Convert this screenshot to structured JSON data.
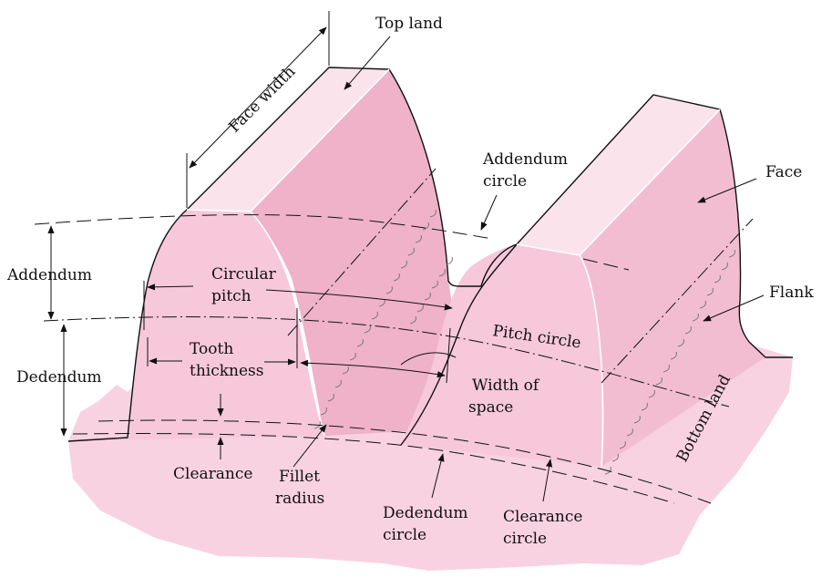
{
  "colors": {
    "ground": "#f9d2e1",
    "tooth_front": "#f6c8da",
    "tooth_face": "#f3bdd1",
    "tooth_top": "#fbe3ec",
    "flank": "#efb2c8"
  },
  "labels": {
    "top_land": "Top land",
    "face_width": "Face width",
    "addendum_circle_1": "Addendum",
    "addendum_circle_2": "circle",
    "face": "Face",
    "flank": "Flank",
    "addendum": "Addendum",
    "circular_pitch_1": "Circular",
    "circular_pitch_2": "pitch",
    "pitch_circle": "Pitch circle",
    "dedendum": "Dedendum",
    "tooth_thickness_1": "Tooth",
    "tooth_thickness_2": "thickness",
    "width_of_space_1": "Width of",
    "width_of_space_2": "space",
    "bottom_land": "Bottom land",
    "clearance": "Clearance",
    "fillet_radius_1": "Fillet",
    "fillet_radius_2": "radius",
    "dedendum_circle_1": "Dedendum",
    "dedendum_circle_2": "circle",
    "clearance_circle_1": "Clearance",
    "clearance_circle_2": "circle"
  }
}
